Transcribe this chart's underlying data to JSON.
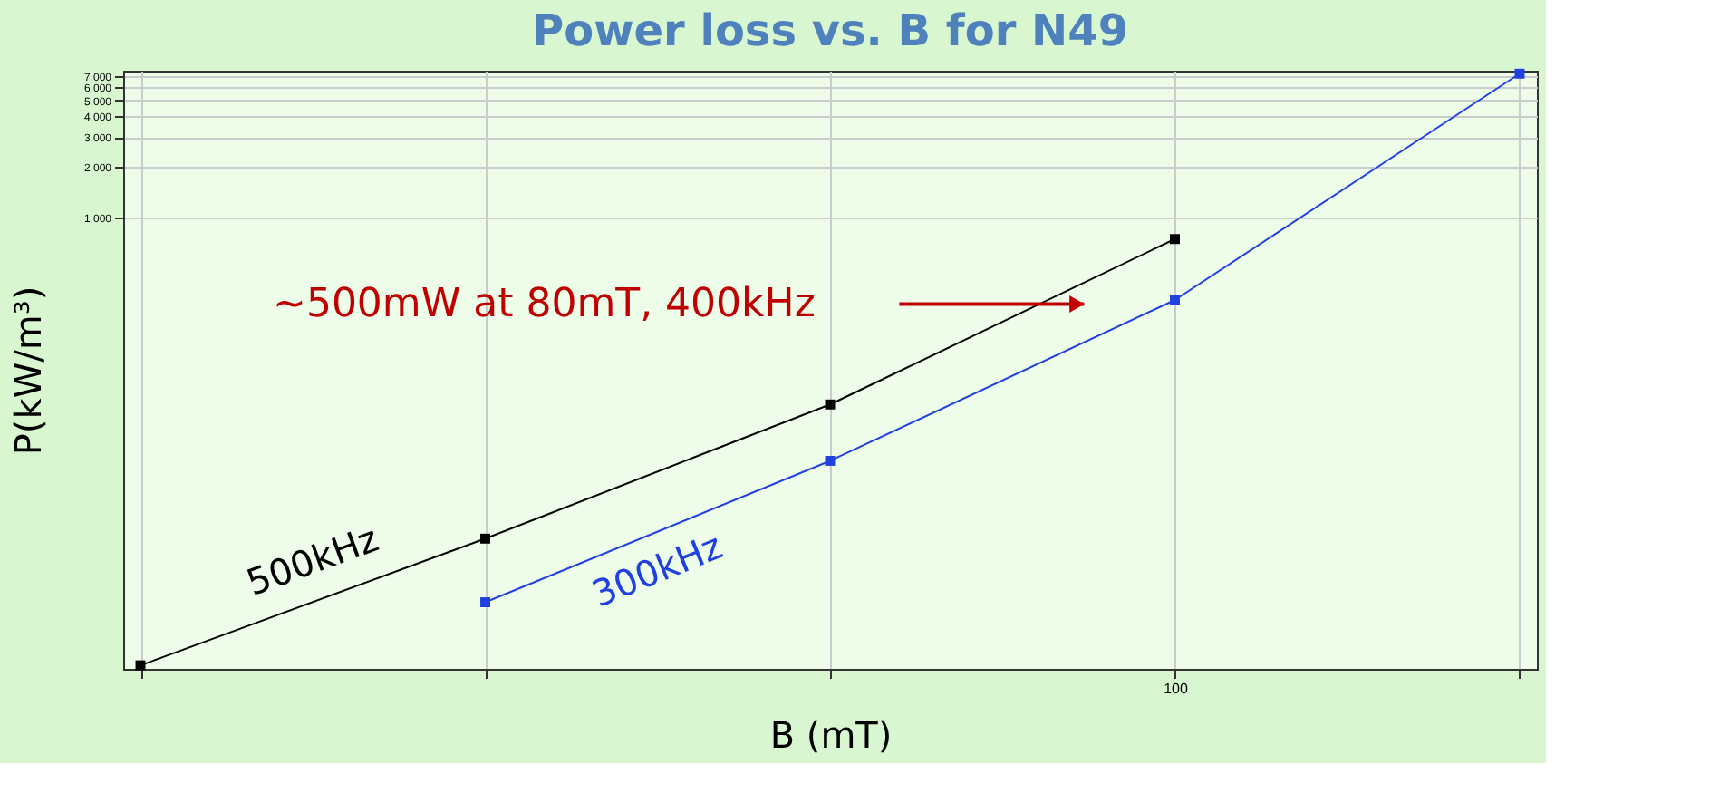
{
  "chart_data": {
    "type": "line",
    "title": "Power loss vs. B for N49",
    "xlabel": "B (mT)",
    "ylabel": "P(kW/m³)",
    "log": "y",
    "ylim": [
      2,
      7500
    ],
    "categories": [
      null,
      null,
      null,
      "100",
      null
    ],
    "yticks": [
      {
        "value": 1000,
        "label": "1,000"
      },
      {
        "value": 2000,
        "label": "2,000"
      },
      {
        "value": 3000,
        "label": "3,000"
      },
      {
        "value": 4000,
        "label": "4,000"
      },
      {
        "value": 5000,
        "label": "5,000"
      },
      {
        "value": 6000,
        "label": "6,000"
      },
      {
        "value": 7000,
        "label": "7,000"
      }
    ],
    "grid": true,
    "marker": "square",
    "line_style": "solid",
    "series": [
      {
        "name": "500kHz",
        "color": "#000000",
        "values": [
          2.1,
          12,
          76,
          740,
          null
        ]
      },
      {
        "name": "300kHz",
        "color": "#2040e0",
        "values": [
          null,
          5,
          35,
          320,
          7200
        ]
      }
    ],
    "annotations": [
      "~500mW at 80mT, 400kHz"
    ]
  }
}
